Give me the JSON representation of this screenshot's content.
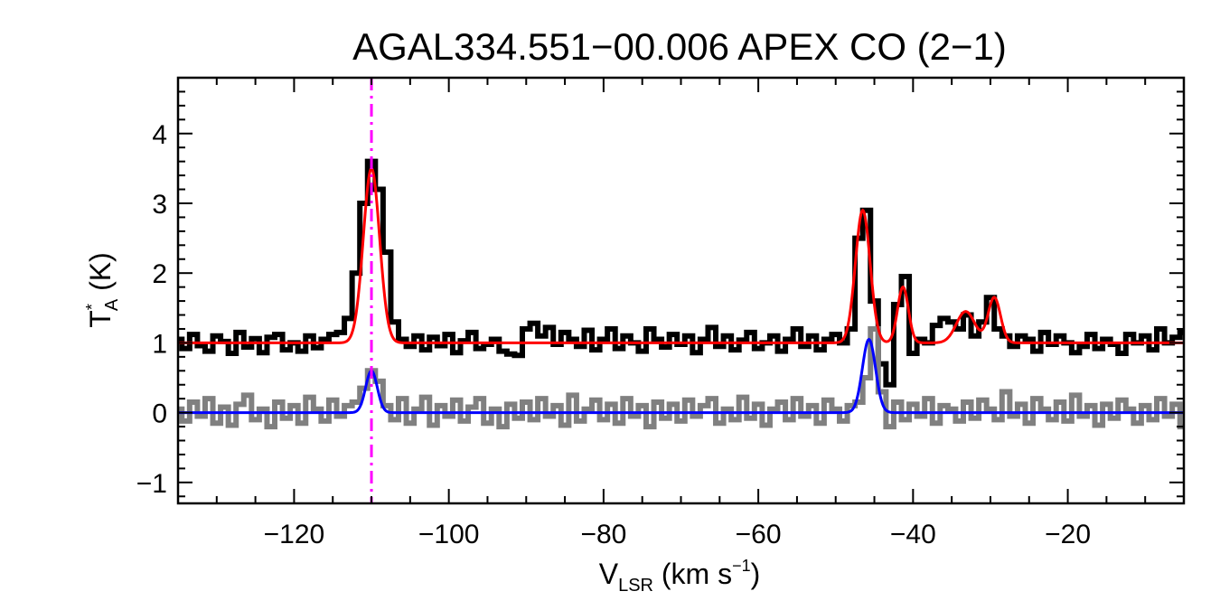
{
  "chart_data": {
    "type": "line",
    "title": "AGAL334.551−00.006  APEX CO (2−1)",
    "xlabel": {
      "main": "V",
      "sub": "LSR",
      "unit_prefix": " (km s",
      "unit_sup": "−1",
      "unit_suffix": ")"
    },
    "ylabel": {
      "main": "T",
      "sup": "*",
      "sub": "A",
      "unit": " (K)"
    },
    "xlim": [
      -135,
      -5
    ],
    "ylim": [
      -1.3,
      4.8
    ],
    "x_ticks": [
      -120,
      -100,
      -80,
      -60,
      -40,
      -20
    ],
    "x_tick_labels": [
      "−120",
      "−100",
      "−80",
      "−60",
      "−40",
      "−20"
    ],
    "y_ticks": [
      -1,
      0,
      1,
      2,
      3,
      4
    ],
    "y_tick_labels": [
      "−1",
      "0",
      "1",
      "2",
      "3",
      "4"
    ],
    "grid": false,
    "vline": {
      "x": -110.0,
      "color": "#ff00ff",
      "style": "dash-dot"
    },
    "colors": {
      "CO_2_1_spectrum": "#000000",
      "CO_2_1_fit": "#ff0000",
      "offset_spectrum": "#808080",
      "offset_fit": "#0000ff"
    },
    "series": [
      {
        "kind": "gaussian_fit",
        "color_key": "CO_2_1_fit",
        "baseline": 1.0,
        "x_range": [
          -135,
          -5
        ],
        "components": [
          {
            "center": -110.0,
            "amplitude": 2.5,
            "sigma": 1.05
          },
          {
            "center": -46.5,
            "amplitude": 1.9,
            "sigma": 0.95
          },
          {
            "center": -41.3,
            "amplitude": 0.8,
            "sigma": 0.7
          },
          {
            "center": -33.2,
            "amplitude": 0.45,
            "sigma": 1.2
          },
          {
            "center": -29.5,
            "amplitude": 0.65,
            "sigma": 0.8
          }
        ]
      },
      {
        "kind": "gaussian_fit",
        "color_key": "offset_fit",
        "baseline": 0.0,
        "x_range": [
          -135,
          -5
        ],
        "components": [
          {
            "center": -110.0,
            "amplitude": 0.6,
            "sigma": 0.75
          },
          {
            "center": -45.7,
            "amplitude": 1.05,
            "sigma": 0.85
          }
        ]
      },
      {
        "kind": "histogram_spectrum",
        "color_key": "CO_2_1_spectrum",
        "x": [
          -135,
          -134,
          -133,
          -132,
          -131,
          -130,
          -129,
          -128,
          -127,
          -126,
          -125,
          -124,
          -123,
          -122,
          -121,
          -120,
          -119,
          -118,
          -117,
          -116,
          -115,
          -114,
          -113,
          -112,
          -111,
          -110,
          -109,
          -108,
          -107,
          -106,
          -105,
          -104,
          -103,
          -102,
          -101,
          -100,
          -99,
          -98,
          -97,
          -96,
          -95,
          -94,
          -93,
          -92,
          -91,
          -90,
          -89,
          -88,
          -87,
          -86,
          -85,
          -84,
          -83,
          -82,
          -81,
          -80,
          -79,
          -78,
          -77,
          -76,
          -75,
          -74,
          -73,
          -72,
          -71,
          -70,
          -69,
          -68,
          -67,
          -66,
          -65,
          -64,
          -63,
          -62,
          -61,
          -60,
          -59,
          -58,
          -57,
          -56,
          -55,
          -54,
          -53,
          -52,
          -51,
          -50,
          -49,
          -48,
          -47,
          -46,
          -45,
          -44,
          -43,
          -42,
          -41,
          -40,
          -39,
          -38,
          -37,
          -36,
          -35,
          -34,
          -33,
          -32,
          -31,
          -30,
          -29,
          -28,
          -27,
          -26,
          -25,
          -24,
          -23,
          -22,
          -21,
          -20,
          -19,
          -18,
          -17,
          -16,
          -15,
          -14,
          -13,
          -12,
          -11,
          -10,
          -9,
          -8,
          -7,
          -6,
          -5
        ],
        "y": [
          1.05,
          0.92,
          1.12,
          0.96,
          0.88,
          1.1,
          1.02,
          0.85,
          1.15,
          0.94,
          1.06,
          0.86,
          1.08,
          1.12,
          0.9,
          1.0,
          0.88,
          1.1,
          0.93,
          1.05,
          1.12,
          1.15,
          1.35,
          2.0,
          3.0,
          3.6,
          3.2,
          2.3,
          1.3,
          1.05,
          0.95,
          1.1,
          0.9,
          1.08,
          0.96,
          1.12,
          0.86,
          1.03,
          1.15,
          0.92,
          0.98,
          1.05,
          0.88,
          0.84,
          0.82,
          1.2,
          1.28,
          1.1,
          1.22,
          0.98,
          1.15,
          1.05,
          0.95,
          1.18,
          0.9,
          1.05,
          1.2,
          0.92,
          1.1,
          1.0,
          0.88,
          1.2,
          1.05,
          0.94,
          1.12,
          0.98,
          1.1,
          0.86,
          1.05,
          1.22,
          0.95,
          1.1,
          0.9,
          1.04,
          1.15,
          0.92,
          1.0,
          1.1,
          0.88,
          1.05,
          1.2,
          0.95,
          1.1,
          0.9,
          1.05,
          1.12,
          1.0,
          1.2,
          2.5,
          2.9,
          1.6,
          0.7,
          0.4,
          1.55,
          1.95,
          0.85,
          1.05,
          1.0,
          1.25,
          1.35,
          1.3,
          1.2,
          1.4,
          1.1,
          1.3,
          1.65,
          1.2,
          1.1,
          0.95,
          1.1,
          1.05,
          0.88,
          1.15,
          0.98,
          1.1,
          1.0,
          0.86,
          0.95,
          1.12,
          0.92,
          1.05,
          0.98,
          0.85,
          1.12,
          1.0,
          1.1,
          0.9,
          1.2,
          1.0,
          1.08,
          1.15
        ]
      },
      {
        "kind": "histogram_spectrum",
        "color_key": "offset_spectrum",
        "x": [
          -135,
          -134,
          -133,
          -132,
          -131,
          -130,
          -129,
          -128,
          -127,
          -126,
          -125,
          -124,
          -123,
          -122,
          -121,
          -120,
          -119,
          -118,
          -117,
          -116,
          -115,
          -114,
          -113,
          -112,
          -111,
          -110,
          -109,
          -108,
          -107,
          -106,
          -105,
          -104,
          -103,
          -102,
          -101,
          -100,
          -99,
          -98,
          -97,
          -96,
          -95,
          -94,
          -93,
          -92,
          -91,
          -90,
          -89,
          -88,
          -87,
          -86,
          -85,
          -84,
          -83,
          -82,
          -81,
          -80,
          -79,
          -78,
          -77,
          -76,
          -75,
          -74,
          -73,
          -72,
          -71,
          -70,
          -69,
          -68,
          -67,
          -66,
          -65,
          -64,
          -63,
          -62,
          -61,
          -60,
          -59,
          -58,
          -57,
          -56,
          -55,
          -54,
          -53,
          -52,
          -51,
          -50,
          -49,
          -48,
          -47,
          -46,
          -45,
          -44,
          -43,
          -42,
          -41,
          -40,
          -39,
          -38,
          -37,
          -36,
          -35,
          -34,
          -33,
          -32,
          -31,
          -30,
          -29,
          -28,
          -27,
          -26,
          -25,
          -24,
          -23,
          -22,
          -21,
          -20,
          -19,
          -18,
          -17,
          -16,
          -15,
          -14,
          -13,
          -12,
          -11,
          -10,
          -9,
          -8,
          -7,
          -6,
          -5
        ],
        "y": [
          0.05,
          -0.12,
          0.15,
          -0.05,
          0.2,
          -0.15,
          0.08,
          -0.18,
          0.12,
          0.25,
          -0.1,
          0.05,
          -0.2,
          0.15,
          -0.08,
          0.1,
          -0.15,
          0.22,
          0.05,
          -0.12,
          0.18,
          -0.05,
          0.1,
          0.15,
          0.35,
          0.6,
          0.45,
          0.1,
          -0.1,
          0.2,
          -0.15,
          0.05,
          0.22,
          -0.18,
          0.1,
          -0.05,
          0.18,
          -0.12,
          0.08,
          0.2,
          -0.15,
          0.05,
          -0.2,
          0.12,
          -0.08,
          0.15,
          -0.1,
          0.2,
          -0.05,
          0.1,
          -0.18,
          0.25,
          -0.12,
          0.05,
          0.18,
          -0.1,
          0.12,
          -0.15,
          0.2,
          -0.05,
          0.1,
          -0.2,
          0.15,
          -0.08,
          0.12,
          -0.12,
          0.18,
          -0.05,
          0.1,
          0.2,
          -0.15,
          0.05,
          -0.1,
          0.22,
          -0.08,
          0.12,
          -0.18,
          0.05,
          0.15,
          -0.1,
          0.2,
          -0.05,
          0.1,
          -0.15,
          0.18,
          0.05,
          -0.12,
          0.1,
          0.15,
          0.5,
          1.2,
          0.3,
          -0.2,
          0.15,
          -0.1,
          0.12,
          -0.05,
          0.2,
          -0.15,
          0.1,
          0.05,
          -0.12,
          0.15,
          -0.08,
          0.18,
          0.05,
          -0.1,
          0.3,
          -0.05,
          0.12,
          -0.15,
          0.2,
          0.05,
          -0.1,
          0.15,
          -0.12,
          0.25,
          -0.05,
          0.1,
          -0.18,
          0.12,
          -0.08,
          0.18,
          0.05,
          -0.15,
          0.1,
          -0.1,
          0.2,
          -0.05,
          0.12,
          -0.2
        ]
      }
    ]
  }
}
